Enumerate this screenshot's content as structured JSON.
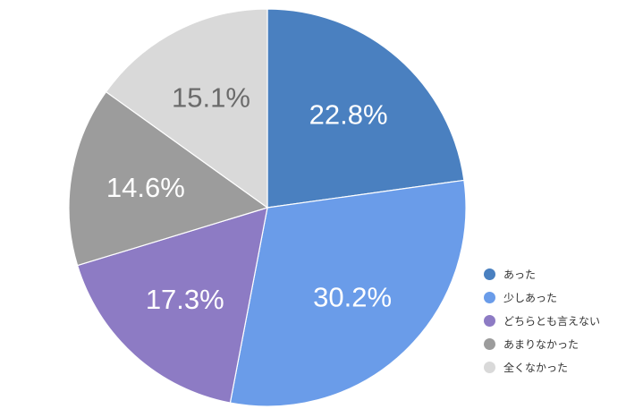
{
  "chart_data": {
    "type": "pie",
    "categories": [
      "あった",
      "少しあった",
      "どちらとも言えない",
      "あまりなかった",
      "全くなかった"
    ],
    "values": [
      22.8,
      30.2,
      17.3,
      14.6,
      15.1
    ],
    "labels": [
      "22.8%",
      "30.2%",
      "17.3%",
      "14.6%",
      "15.1%"
    ],
    "colors": [
      "#4a80c0",
      "#6a9ce9",
      "#8d7bc4",
      "#9c9c9c",
      "#d9d9d9"
    ],
    "label_colors": [
      "#ffffff",
      "#ffffff",
      "#ffffff",
      "#ffffff",
      "#6b6b6b"
    ],
    "start_angle_deg": 0,
    "direction": "clockwise",
    "legend_position": "bottom-right"
  }
}
